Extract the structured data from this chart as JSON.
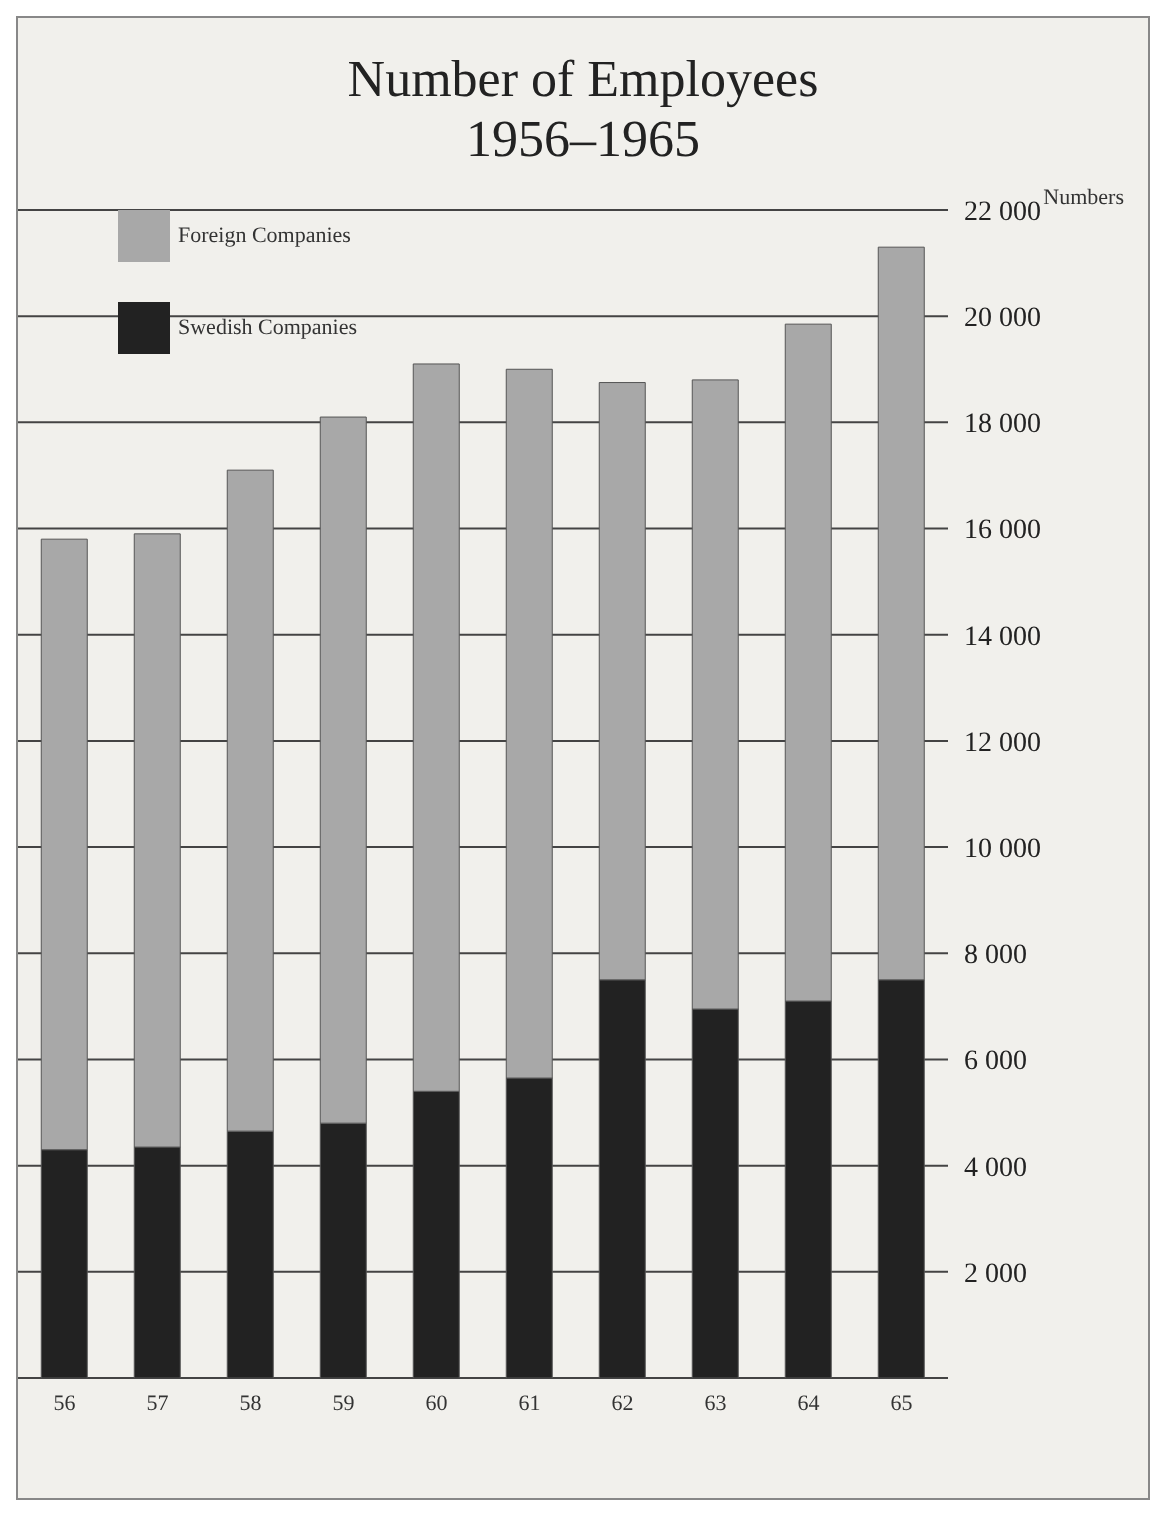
{
  "chart_data": {
    "type": "bar",
    "title": "Number of Employees",
    "subtitle": "1956–1965",
    "ylabel": "Numbers",
    "stacked": true,
    "categories": [
      "56",
      "57",
      "58",
      "59",
      "60",
      "61",
      "62",
      "63",
      "64",
      "65"
    ],
    "series": [
      {
        "name": "Swedish Companies",
        "color": "#222222",
        "values": [
          4300,
          4350,
          4650,
          4800,
          5400,
          5650,
          7500,
          6950,
          7100,
          7500
        ]
      },
      {
        "name": "Foreign Companies",
        "color": "#a8a8a8",
        "values": [
          11500,
          11550,
          12450,
          13300,
          13700,
          13350,
          11250,
          11850,
          12750,
          13800
        ]
      }
    ],
    "ylim": [
      0,
      22000
    ],
    "yticks": [
      {
        "value": 2000,
        "label": "2 000"
      },
      {
        "value": 4000,
        "label": "4 000"
      },
      {
        "value": 6000,
        "label": "6 000"
      },
      {
        "value": 8000,
        "label": "8 000"
      },
      {
        "value": 10000,
        "label": "10 000"
      },
      {
        "value": 12000,
        "label": "12 000"
      },
      {
        "value": 14000,
        "label": "14 000"
      },
      {
        "value": 16000,
        "label": "16 000"
      },
      {
        "value": 18000,
        "label": "18 000"
      },
      {
        "value": 20000,
        "label": "20 000"
      },
      {
        "value": 22000,
        "label": "22 000"
      }
    ],
    "grid": "y",
    "legend": "top left"
  }
}
